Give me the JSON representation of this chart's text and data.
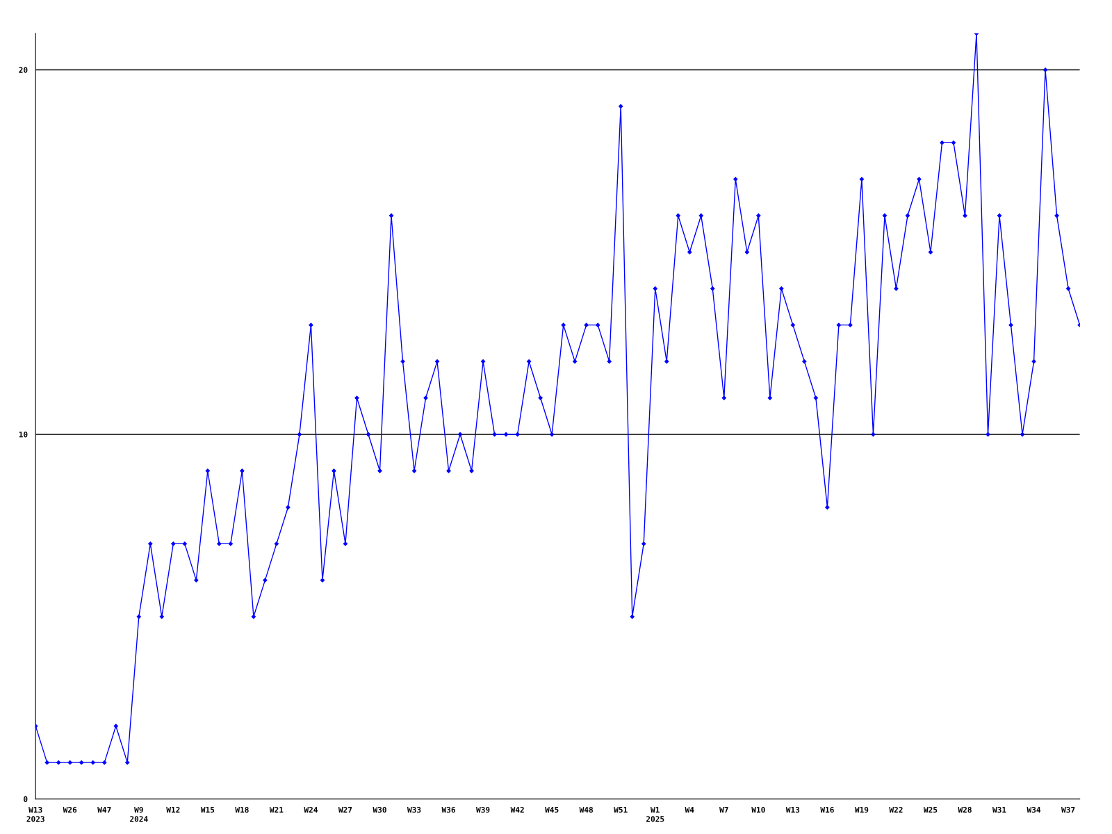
{
  "chart_data": {
    "type": "line",
    "categories": [
      "W13\n2023",
      null,
      null,
      "W26",
      null,
      null,
      "W47",
      null,
      null,
      "W9\n2024",
      null,
      null,
      "W12",
      null,
      null,
      "W15",
      null,
      null,
      "W18",
      null,
      null,
      "W21",
      null,
      null,
      "W24",
      null,
      null,
      "W27",
      null,
      null,
      "W30",
      null,
      null,
      "W33",
      null,
      null,
      "W36",
      null,
      null,
      "W39",
      null,
      null,
      "W42",
      null,
      null,
      "W45",
      null,
      null,
      "W48",
      null,
      null,
      "W51",
      null,
      null,
      "W1\n2025",
      null,
      null,
      "W4",
      null,
      null,
      "W7",
      null,
      null,
      "W10",
      null,
      null,
      "W13",
      null,
      null,
      "W16",
      null,
      null,
      "W19",
      null,
      null,
      "W22",
      null,
      null,
      "W25",
      null,
      null,
      "W28",
      null,
      null,
      "W31",
      null,
      null,
      "W34",
      null,
      null,
      "W37",
      null
    ],
    "series": [
      {
        "color": "#0000ff",
        "values": [
          2,
          1,
          1,
          1,
          1,
          1,
          1,
          2,
          1,
          5,
          7,
          5,
          7,
          7,
          6,
          9,
          7,
          7,
          9,
          5,
          6,
          7,
          8,
          10,
          13,
          6,
          9,
          7,
          11,
          10,
          9,
          16,
          12,
          9,
          11,
          12,
          9,
          10,
          9,
          12,
          10,
          10,
          10,
          12,
          11,
          10,
          13,
          12,
          13,
          13,
          12,
          19,
          5,
          7,
          14,
          12,
          16,
          15,
          16,
          14,
          11,
          17,
          15,
          16,
          11,
          14,
          13,
          12,
          11,
          8,
          13,
          13,
          17,
          10,
          16,
          14,
          16,
          17,
          15,
          18,
          18,
          16,
          21,
          10,
          16,
          13,
          10,
          12,
          20,
          16,
          14,
          13
        ]
      }
    ],
    "ylim": [
      0,
      21
    ],
    "yticks": [
      0,
      10,
      20
    ],
    "grid": "y",
    "marker": "diamond",
    "line_style": "solid",
    "legend": false
  }
}
